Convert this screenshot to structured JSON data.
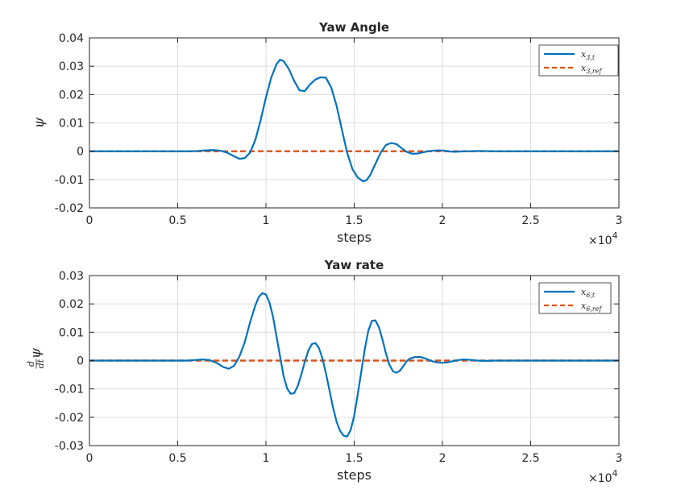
{
  "chart_data": [
    {
      "type": "line",
      "title": "Yaw Angle",
      "xlabel": "steps",
      "ylabel": "ψ",
      "x_exponent": "×10",
      "x_exponent_power": "4",
      "xlim": [
        0,
        30000
      ],
      "ylim": [
        -0.02,
        0.04
      ],
      "x_ticks": [
        0,
        5000,
        10000,
        15000,
        20000,
        25000,
        30000
      ],
      "x_tick_labels": [
        "0",
        "0.5",
        "1",
        "1.5",
        "2",
        "2.5",
        "3"
      ],
      "y_ticks": [
        -0.02,
        -0.01,
        0,
        0.01,
        0.02,
        0.03,
        0.04
      ],
      "y_tick_labels": [
        "-0.02",
        "-0.01",
        "0",
        "0.01",
        "0.02",
        "0.03",
        "0.04"
      ],
      "grid": true,
      "legend_position": "top-right",
      "series": [
        {
          "name": "x3,t",
          "name_main": "x",
          "name_sub": "3,t",
          "color": "#0072BD",
          "style": "solid",
          "x": [
            0,
            3000,
            5000,
            5800,
            6200,
            6600,
            7000,
            7400,
            7800,
            8200,
            8500,
            8800,
            9100,
            9400,
            9700,
            10000,
            10300,
            10600,
            10800,
            11000,
            11300,
            11600,
            11900,
            12200,
            12500,
            12800,
            13100,
            13400,
            13700,
            14000,
            14300,
            14600,
            14900,
            15200,
            15500,
            15700,
            15900,
            16200,
            16500,
            16800,
            17100,
            17400,
            17700,
            18000,
            18300,
            18600,
            18900,
            19200,
            19500,
            19800,
            20100,
            20400,
            20700,
            21000,
            21500,
            22000,
            23000,
            25000,
            27000,
            30000
          ],
          "y": [
            0,
            0,
            0,
            0,
            0.0001,
            0.0003,
            0.0004,
            0.0002,
            -0.0005,
            -0.0018,
            -0.0027,
            -0.0024,
            -0.0005,
            0.004,
            0.011,
            0.019,
            0.026,
            0.0307,
            0.0323,
            0.0318,
            0.029,
            0.0248,
            0.0215,
            0.0212,
            0.0236,
            0.0253,
            0.0261,
            0.0259,
            0.0225,
            0.0161,
            0.0077,
            -0.0005,
            -0.0063,
            -0.0093,
            -0.0106,
            -0.0102,
            -0.0085,
            -0.0045,
            -0.0005,
            0.0022,
            0.0029,
            0.0025,
            0.001,
            -0.0003,
            -0.0009,
            -0.0008,
            -0.0004,
            0,
            0.0002,
            0.0003,
            0.0002,
            -0.0001,
            -0.0002,
            -0.0001,
            0,
            0.0001,
            0,
            0,
            0,
            0
          ]
        },
        {
          "name": "x3,ref",
          "name_main": "x",
          "name_sub": "3,ref",
          "color": "#D95319",
          "style": "dashed",
          "x": [
            0,
            30000
          ],
          "y": [
            0,
            0
          ]
        }
      ]
    },
    {
      "type": "line",
      "title": "Yaw rate",
      "xlabel": "steps",
      "ylabel": "d/dt ψ",
      "ylabel_num": "d",
      "ylabel_den": "dt",
      "ylabel_var": "ψ",
      "x_exponent": "×10",
      "x_exponent_power": "4",
      "xlim": [
        0,
        30000
      ],
      "ylim": [
        -0.03,
        0.03
      ],
      "x_ticks": [
        0,
        5000,
        10000,
        15000,
        20000,
        25000,
        30000
      ],
      "x_tick_labels": [
        "0",
        "0.5",
        "1",
        "1.5",
        "2",
        "2.5",
        "3"
      ],
      "y_ticks": [
        -0.03,
        -0.02,
        -0.01,
        0,
        0.01,
        0.02,
        0.03
      ],
      "y_tick_labels": [
        "-0.03",
        "-0.02",
        "-0.01",
        "0",
        "0.01",
        "0.02",
        "0.03"
      ],
      "grid": true,
      "legend_position": "top-right",
      "series": [
        {
          "name": "x6,t",
          "name_main": "x",
          "name_sub": "6,t",
          "color": "#0072BD",
          "style": "solid",
          "x": [
            0,
            3000,
            5000,
            5500,
            6000,
            6400,
            6800,
            7200,
            7600,
            7900,
            8200,
            8500,
            8800,
            9100,
            9400,
            9600,
            9800,
            10000,
            10200,
            10400,
            10600,
            10800,
            11000,
            11200,
            11400,
            11600,
            11800,
            12000,
            12200,
            12400,
            12600,
            12800,
            13000,
            13200,
            13400,
            13600,
            13800,
            14000,
            14200,
            14400,
            14600,
            14800,
            15000,
            15200,
            15400,
            15600,
            15800,
            16000,
            16200,
            16400,
            16600,
            16800,
            17000,
            17200,
            17400,
            17600,
            17800,
            18000,
            18200,
            18400,
            18600,
            18800,
            19000,
            19200,
            19400,
            19600,
            19800,
            20000,
            20300,
            20600,
            20900,
            21200,
            21500,
            22000,
            22500,
            23000,
            25000,
            27000,
            30000
          ],
          "y": [
            0,
            0,
            0,
            0,
            0.0002,
            0.0004,
            0.0002,
            -0.0008,
            -0.0023,
            -0.0029,
            -0.0018,
            0.0015,
            0.0065,
            0.0135,
            0.0195,
            0.0225,
            0.0238,
            0.0233,
            0.0205,
            0.0155,
            0.0085,
            0.0015,
            -0.0055,
            -0.0098,
            -0.0117,
            -0.0115,
            -0.009,
            -0.005,
            -0.0005,
            0.0035,
            0.0058,
            0.0062,
            0.0045,
            0.0008,
            -0.0045,
            -0.0105,
            -0.0165,
            -0.0215,
            -0.0248,
            -0.0265,
            -0.0268,
            -0.0245,
            -0.0195,
            -0.012,
            -0.004,
            0.004,
            0.0105,
            0.014,
            0.0142,
            0.0118,
            0.0075,
            0.0025,
            -0.0015,
            -0.0038,
            -0.0043,
            -0.0035,
            -0.0018,
            0,
            0.0008,
            0.0012,
            0.0013,
            0.0012,
            0.0008,
            0.0003,
            -0.0002,
            -0.0005,
            -0.0007,
            -0.0008,
            -0.0006,
            -0.0002,
            0.0002,
            0.0004,
            0.0003,
            0,
            -0.0001,
            0,
            0,
            0,
            0
          ]
        },
        {
          "name": "x6,ref",
          "name_main": "x",
          "name_sub": "6,ref",
          "color": "#D95319",
          "style": "dashed",
          "x": [
            0,
            30000
          ],
          "y": [
            0,
            0
          ]
        }
      ]
    }
  ]
}
